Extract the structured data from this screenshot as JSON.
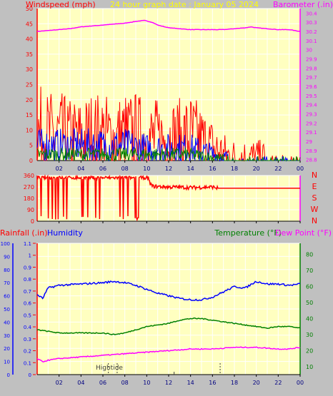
{
  "title": "24 hour graph date : January 05 2024",
  "colors": {
    "windspeed": "#ff0000",
    "gust_blue": "#0000ff",
    "avg_green": "#008000",
    "barometer": "#ff00ff",
    "direction": "#ff0000",
    "rainfall": "#ff0000",
    "humidity": "#0000ff",
    "temperature": "#008000",
    "dewpoint": "#ff00ff",
    "plot_bg": "#ffffc0",
    "grid": "#ffffff",
    "title": "#ffff00",
    "tide": "#404040"
  },
  "x_ticks": [
    "02",
    "04",
    "06",
    "08",
    "10",
    "12",
    "14",
    "16",
    "18",
    "20",
    "22",
    "00"
  ],
  "chart_data": [
    {
      "type": "line",
      "name": "wind-barometer",
      "left_label": "Windspeed (mph)",
      "right_label": "Barometer (.in)",
      "ylim": [
        0,
        50
      ],
      "yticks": [
        "0",
        "5",
        "10",
        "15",
        "20",
        "25",
        "30",
        "35",
        "40",
        "45",
        "50"
      ],
      "y2lim": [
        28.79,
        30.45
      ],
      "y2ticks": [
        "28.8",
        "28.9",
        "29",
        "29.1",
        "29.2",
        "29.3",
        "29.4",
        "29.5",
        "29.6",
        "29.7",
        "29.8",
        "29.9",
        "30",
        "30.1",
        "30.2",
        "30.3",
        "30.4"
      ],
      "series": [
        {
          "key": "barometer",
          "axis": "right",
          "x": [
            0,
            1,
            2,
            3,
            4,
            5,
            6,
            7,
            8,
            9,
            9.8,
            10.5,
            11,
            12,
            13,
            14,
            15,
            16,
            17,
            18,
            19,
            19.5,
            20,
            21,
            22,
            23,
            24
          ],
          "y": [
            30.2,
            30.21,
            30.22,
            30.23,
            30.25,
            30.26,
            30.27,
            30.28,
            30.29,
            30.31,
            30.32,
            30.3,
            30.27,
            30.24,
            30.23,
            30.22,
            30.22,
            30.22,
            30.22,
            30.23,
            30.24,
            30.25,
            30.24,
            30.23,
            30.22,
            30.22,
            30.2
          ]
        },
        {
          "key": "windspeed",
          "axis": "left",
          "x": [
            0,
            1,
            2,
            3,
            4,
            5,
            6,
            7,
            8,
            9,
            10,
            11,
            12,
            13,
            14,
            15,
            16,
            16.5,
            17,
            18,
            19,
            20,
            21,
            22,
            23,
            24
          ],
          "y": [
            9,
            8,
            8,
            7,
            7,
            8,
            8,
            7,
            8,
            8,
            7,
            7,
            7,
            7,
            8,
            6,
            4,
            3,
            2,
            1,
            1,
            1,
            0.5,
            0.5,
            0.5,
            0.5
          ]
        },
        {
          "key": "gust_blue",
          "axis": "left",
          "x": [
            0,
            2,
            4,
            6,
            8,
            10,
            12,
            14,
            15,
            16,
            17,
            18,
            24
          ],
          "y": [
            5,
            5,
            5,
            5,
            5,
            4,
            4,
            4,
            3,
            2,
            1,
            0,
            0
          ]
        },
        {
          "key": "avg_green",
          "axis": "left",
          "x": [
            0,
            2,
            4,
            6,
            8,
            10,
            12,
            14,
            15,
            16,
            17,
            18,
            24
          ],
          "y": [
            2,
            2,
            2,
            2,
            2,
            2,
            2,
            2,
            1.5,
            1,
            0.5,
            0,
            0
          ]
        }
      ]
    },
    {
      "type": "line",
      "name": "wind-direction",
      "ylim": [
        0,
        360
      ],
      "yticks": [
        "0",
        "90",
        "180",
        "270",
        "360"
      ],
      "right_labels": [
        "N",
        "W",
        "S",
        "E",
        "N"
      ],
      "series": [
        {
          "key": "direction",
          "axis": "left",
          "x": [
            0,
            10,
            10.5,
            12,
            14,
            16,
            16.5,
            17,
            24
          ],
          "y": [
            340,
            340,
            275,
            270,
            265,
            270,
            260,
            260,
            260
          ]
        }
      ]
    },
    {
      "type": "line",
      "name": "rain-humidity-temperature",
      "left_label_rain": "Rainfall (.in)",
      "left_label_hum": "Humidity",
      "right_label_temp": "Temperature (°F)",
      "right_label_dew": "Dew Point (°F)",
      "ylim_hum": [
        0,
        100
      ],
      "yticks_hum": [
        "0",
        "10",
        "20",
        "30",
        "40",
        "50",
        "60",
        "70",
        "80",
        "90",
        "100"
      ],
      "ylim_rain": [
        0,
        1.1
      ],
      "yticks_rain": [
        "0",
        "0.1",
        "0.2",
        "0.3",
        "0.4",
        "0.5",
        "0.6",
        "0.7",
        "0.8",
        "0.9",
        "1",
        "1.1"
      ],
      "ylim_temp": [
        5,
        87
      ],
      "yticks_temp": [
        "10",
        "20",
        "30",
        "40",
        "50",
        "60",
        "70",
        "80"
      ],
      "tide_label": "Hightide",
      "series": [
        {
          "key": "humidity",
          "axis": "hum",
          "x": [
            0,
            0.5,
            1,
            2,
            4,
            6,
            7,
            8,
            9,
            10,
            11,
            12,
            13,
            14,
            15,
            16,
            17,
            18,
            19,
            20,
            21,
            22,
            23,
            24
          ],
          "y": [
            61,
            58,
            66,
            68,
            69,
            70,
            71,
            70,
            68,
            65,
            62,
            60,
            58,
            57,
            57,
            59,
            63,
            67,
            66,
            71,
            69,
            69,
            68,
            69
          ]
        },
        {
          "key": "temperature",
          "axis": "temp",
          "x": [
            0,
            1,
            2,
            4,
            6,
            7,
            8,
            9,
            10,
            11,
            12,
            13,
            14,
            15,
            16,
            17,
            18,
            19,
            20,
            21,
            22,
            23,
            24
          ],
          "y": [
            33,
            32,
            31,
            31,
            31,
            30,
            31,
            33,
            35,
            36,
            37,
            39,
            40,
            40,
            39,
            38,
            37,
            36,
            35,
            34,
            35,
            35,
            34
          ]
        },
        {
          "key": "dewpoint",
          "axis": "temp",
          "x": [
            0,
            0.5,
            1,
            2,
            4,
            6,
            8,
            10,
            12,
            14,
            16,
            18,
            20,
            22,
            23,
            24
          ],
          "y": [
            15,
            13,
            14,
            15,
            16,
            17,
            18,
            19,
            20,
            21,
            21,
            22,
            22,
            21,
            21,
            22
          ]
        }
      ]
    }
  ]
}
